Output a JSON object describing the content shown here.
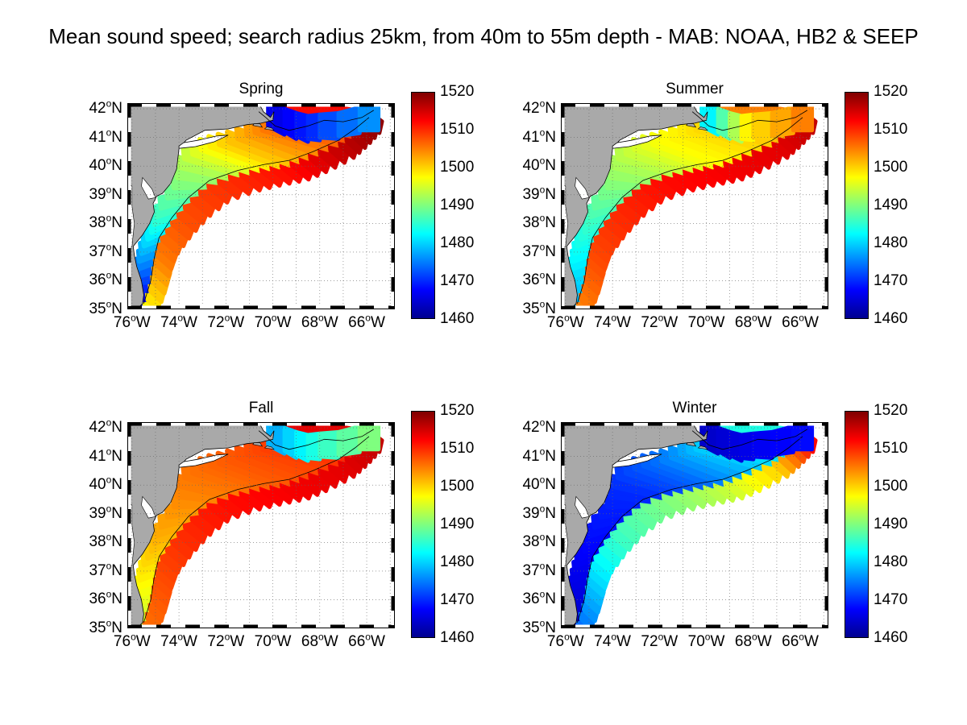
{
  "figure": {
    "title": "Mean sound speed; search radius 25km, from 40m to 55m depth - MAB: NOAA, HB2 & SEEP"
  },
  "axes": {
    "y_tick_labels": [
      {
        "deg": "42",
        "suffix": "N"
      },
      {
        "deg": "41",
        "suffix": "N"
      },
      {
        "deg": "40",
        "suffix": "N"
      },
      {
        "deg": "39",
        "suffix": "N"
      },
      {
        "deg": "38",
        "suffix": "N"
      },
      {
        "deg": "37",
        "suffix": "N"
      },
      {
        "deg": "36",
        "suffix": "N"
      },
      {
        "deg": "35",
        "suffix": "N"
      }
    ],
    "x_tick_labels": [
      {
        "deg": "76",
        "suffix": "W"
      },
      {
        "deg": "74",
        "suffix": "W"
      },
      {
        "deg": "72",
        "suffix": "W"
      },
      {
        "deg": "70",
        "suffix": "W"
      },
      {
        "deg": "68",
        "suffix": "W"
      },
      {
        "deg": "66",
        "suffix": "W"
      }
    ],
    "lat_range": [
      35,
      42.2
    ],
    "lon_range": [
      -76.2,
      -64.8
    ],
    "grid": true,
    "grid_style": "dotted"
  },
  "colorbar": {
    "min": 1460,
    "max": 1520,
    "tick_labels": [
      "1520",
      "1510",
      "1500",
      "1490",
      "1480",
      "1470",
      "1460"
    ],
    "colormap": "jet"
  },
  "colors": {
    "land": "#a9a9a9",
    "water_no_data": "#ffffff",
    "jet": [
      "#00008f",
      "#0000ff",
      "#007fff",
      "#00ffff",
      "#7fff7f",
      "#ffff00",
      "#ff7f00",
      "#ff0000",
      "#7f0000"
    ]
  },
  "chart_data": [
    {
      "type": "heatmap",
      "title": "Spring",
      "variable": "Mean sound speed",
      "shelf_values": [
        1466,
        1476,
        1485,
        1492,
        1500,
        1506,
        1512
      ],
      "slope_values": [
        1498,
        1505,
        1508,
        1510,
        1512,
        1516,
        1519
      ],
      "north_values": [
        1466,
        1470,
        1476
      ]
    },
    {
      "type": "heatmap",
      "title": "Summer",
      "variable": "Mean sound speed",
      "shelf_values": [
        1478,
        1482,
        1486,
        1492,
        1497,
        1500,
        1505
      ],
      "slope_values": [
        1505,
        1508,
        1510,
        1512,
        1513,
        1514,
        1516
      ],
      "north_values": [
        1482,
        1498,
        1505
      ]
    },
    {
      "type": "heatmap",
      "title": "Fall",
      "variable": "Mean sound speed",
      "shelf_values": [
        1494,
        1498,
        1502,
        1505,
        1507,
        1509,
        1514
      ],
      "slope_values": [
        1506,
        1508,
        1510,
        1512,
        1513,
        1514,
        1516
      ],
      "north_values": [
        1478,
        1484,
        1490
      ]
    },
    {
      "type": "heatmap",
      "title": "Winter",
      "variable": "Mean sound speed",
      "shelf_values": [
        1464,
        1466,
        1468,
        1470,
        1474,
        1480,
        1484
      ],
      "slope_values": [
        1474,
        1480,
        1486,
        1490,
        1494,
        1500,
        1512
      ],
      "north_values": [
        1464,
        1466,
        1468
      ]
    }
  ]
}
